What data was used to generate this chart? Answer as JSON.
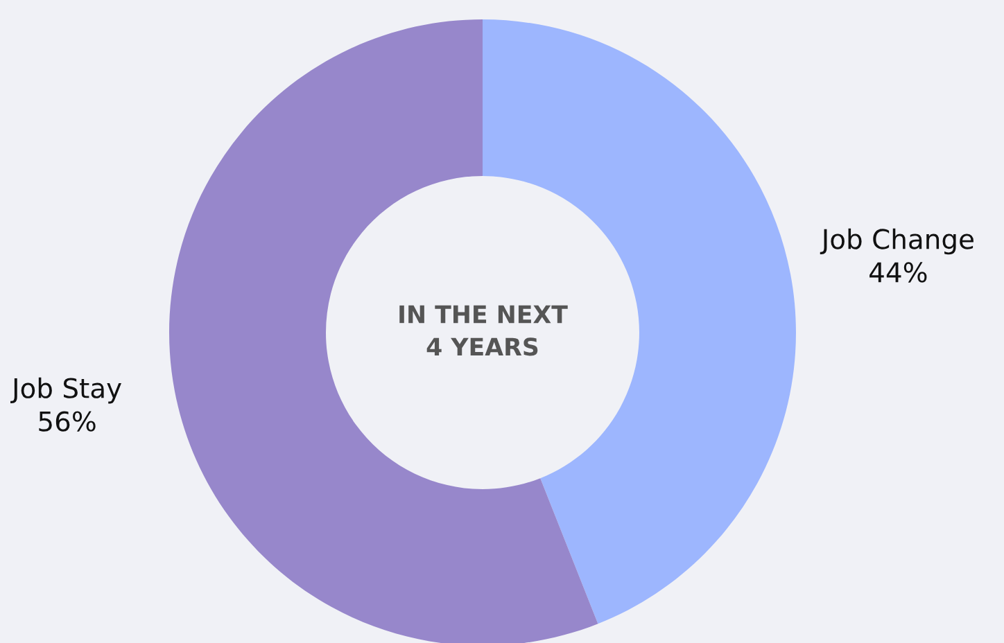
{
  "chart_data": {
    "type": "donut",
    "categories": [
      "Job Change",
      "Job Stay"
    ],
    "values": [
      44,
      56
    ],
    "colors": [
      "#9db6fe",
      "#9787cb"
    ],
    "value_labels": [
      "44%",
      "56%"
    ],
    "annotations": [
      "IN THE NEXT\n4 YEARS"
    ]
  }
}
